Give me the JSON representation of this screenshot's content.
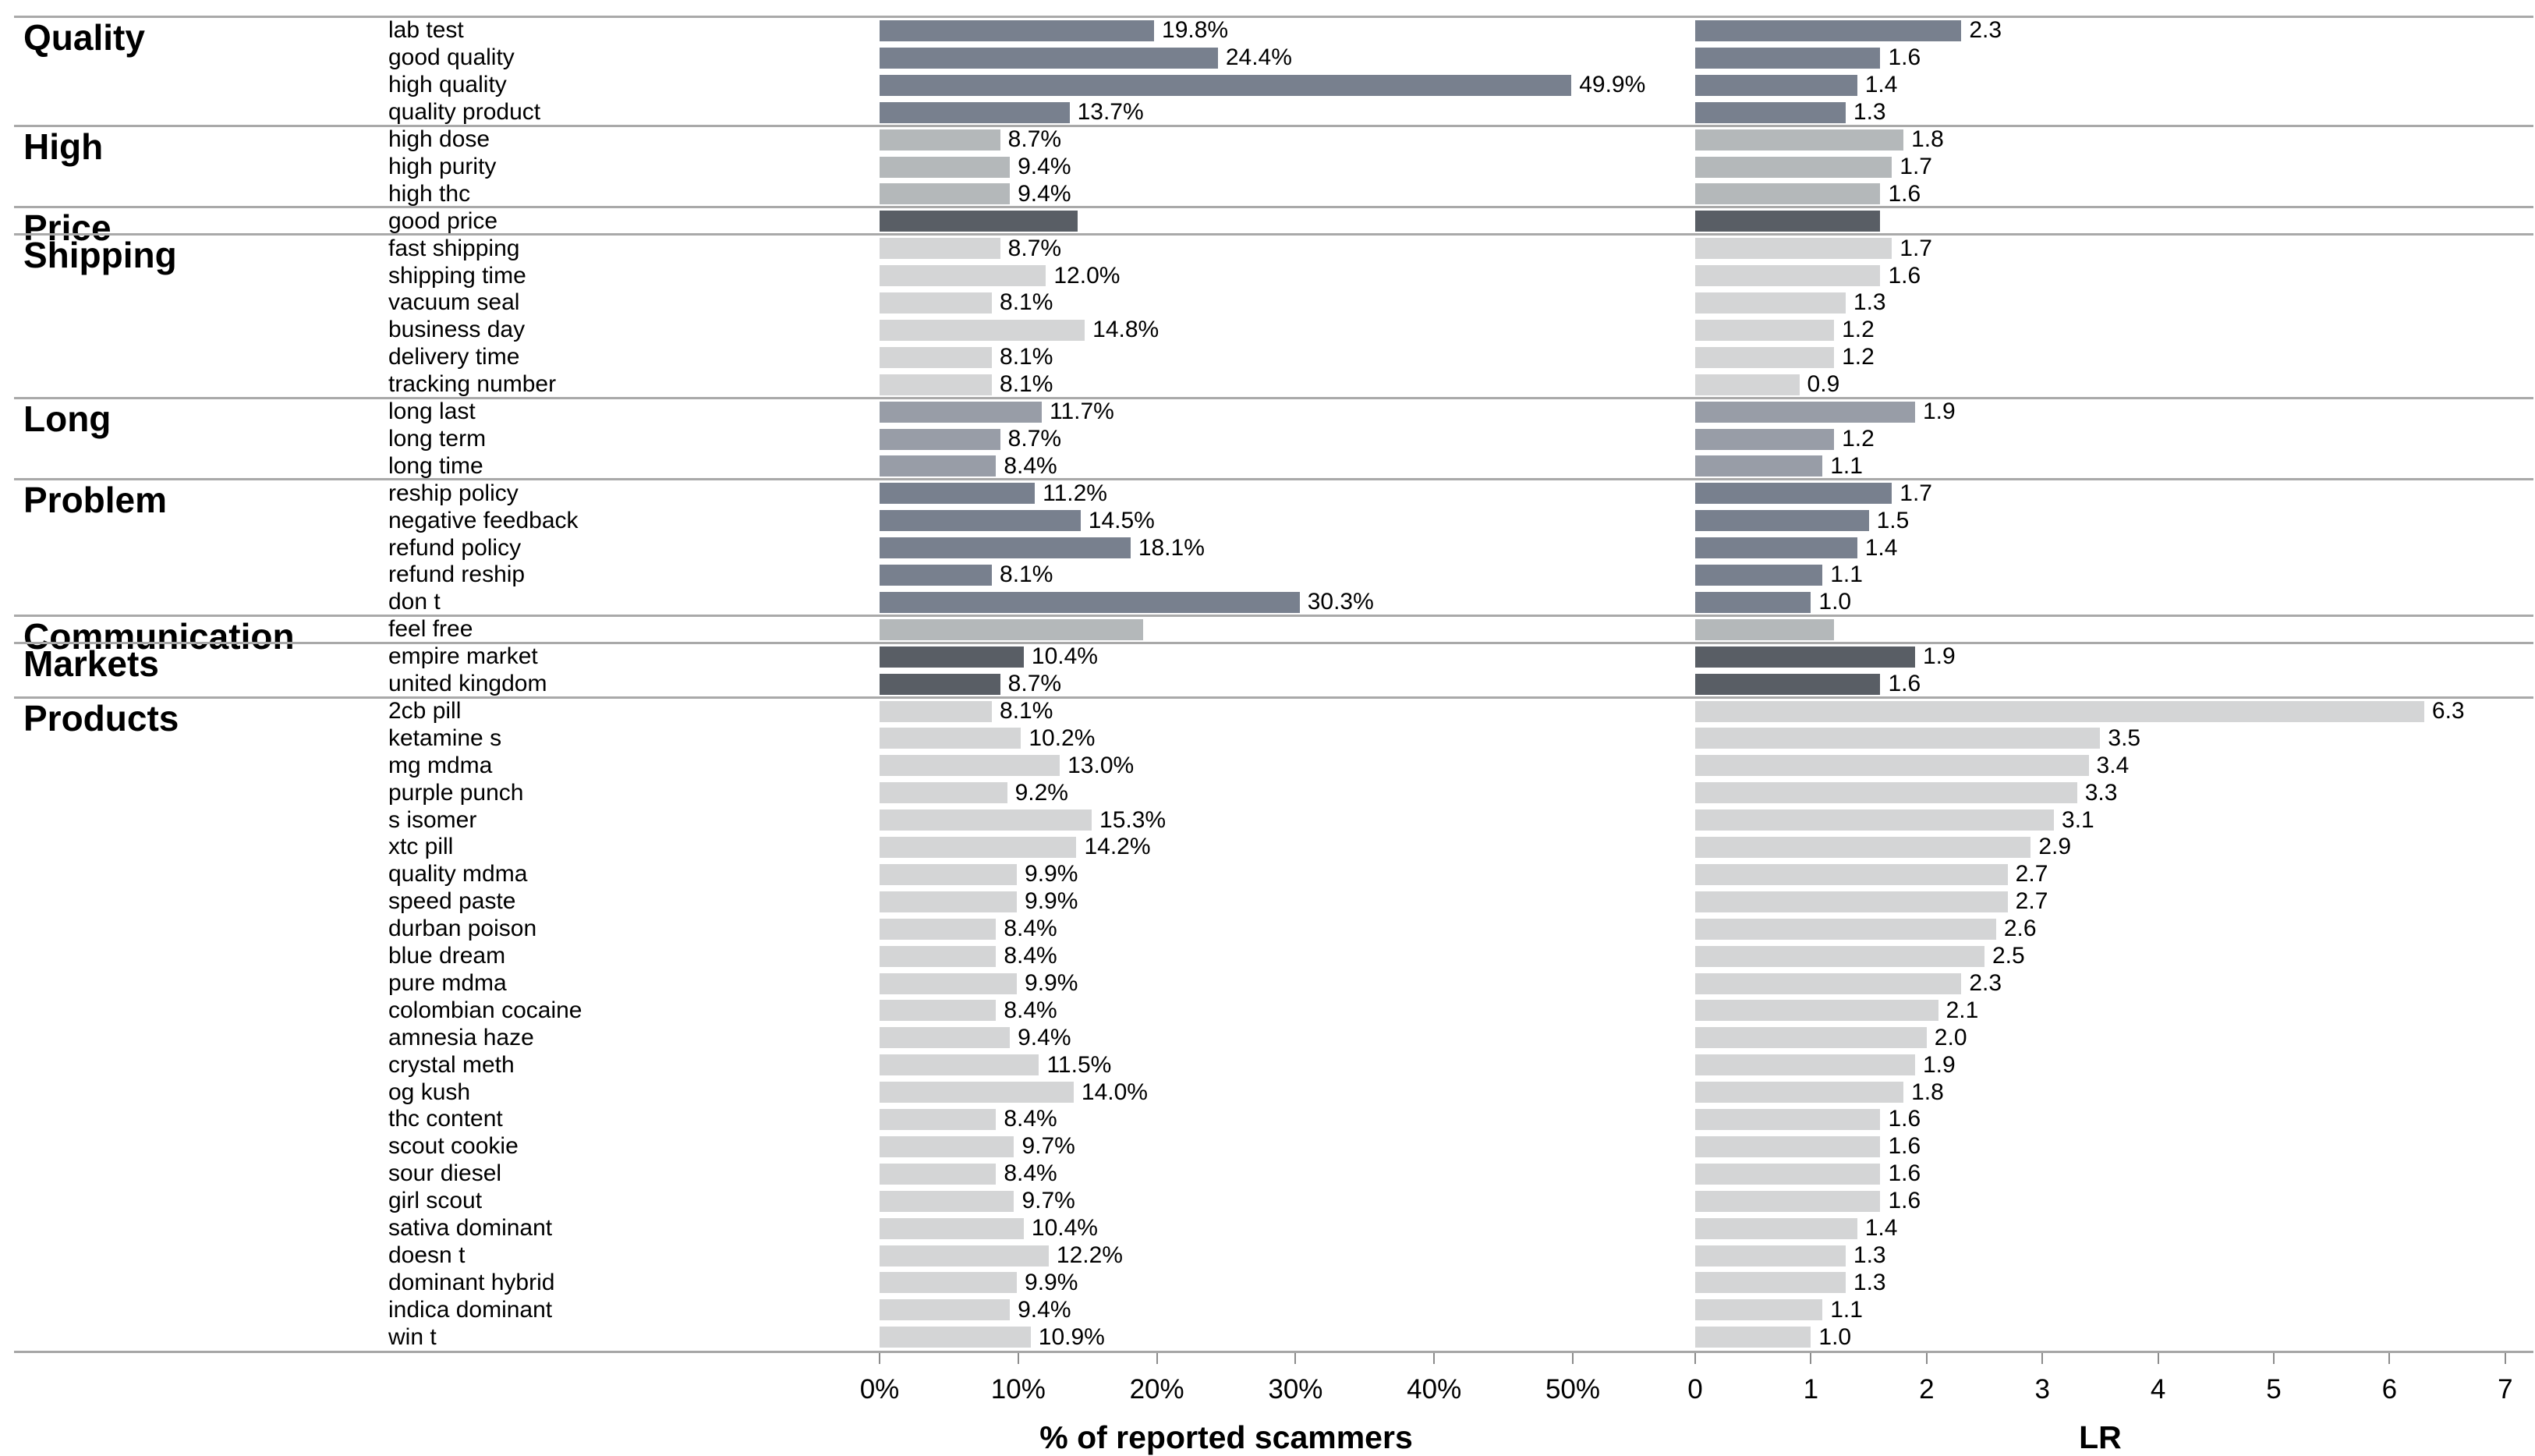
{
  "figure": {
    "background": "#ffffff",
    "left_axis": {
      "title": "% of reported scammers",
      "ticks": [
        "0%",
        "10%",
        "20%",
        "30%",
        "40%",
        "50%"
      ],
      "tick_values": [
        0,
        10,
        20,
        30,
        40,
        50
      ],
      "range": [
        0,
        50
      ]
    },
    "right_axis": {
      "title": "LR",
      "ticks": [
        "0",
        "1",
        "2",
        "3",
        "4",
        "5",
        "6",
        "7"
      ],
      "tick_values": [
        0,
        1,
        2,
        3,
        4,
        5,
        6,
        7
      ],
      "range": [
        0,
        7
      ]
    }
  },
  "chart_data": {
    "type": "bar",
    "orientation": "horizontal",
    "panels": [
      "% of reported scammers",
      "LR"
    ],
    "grid": false,
    "colors": {
      "slate": "#78808e",
      "silver": "#b4b8ba",
      "charcoal": "#595e65",
      "light_gray": "#d4d5d6",
      "medium_gray": "#989da7"
    },
    "groups": [
      {
        "label": "Quality",
        "color": "#78808e",
        "items": [
          {
            "label": "lab test",
            "pct": 19.8,
            "pct_label": "19.8%",
            "lr": 2.3,
            "lr_label": "2.3"
          },
          {
            "label": "good quality",
            "pct": 24.4,
            "pct_label": "24.4%",
            "lr": 1.6,
            "lr_label": "1.6"
          },
          {
            "label": "high quality",
            "pct": 49.9,
            "pct_label": "49.9%",
            "lr": 1.4,
            "lr_label": "1.4"
          },
          {
            "label": "quality product",
            "pct": 13.7,
            "pct_label": "13.7%",
            "lr": 1.3,
            "lr_label": "1.3"
          }
        ]
      },
      {
        "label": "High",
        "color": "#b4b8ba",
        "items": [
          {
            "label": "high dose",
            "pct": 8.7,
            "pct_label": "8.7%",
            "lr": 1.8,
            "lr_label": "1.8"
          },
          {
            "label": "high purity",
            "pct": 9.4,
            "pct_label": "9.4%",
            "lr": 1.7,
            "lr_label": "1.7"
          },
          {
            "label": "high thc",
            "pct": 9.4,
            "pct_label": "9.4%",
            "lr": 1.6,
            "lr_label": "1.6"
          }
        ]
      },
      {
        "label": "Price",
        "color": "#595e65",
        "items": [
          {
            "label": "good price",
            "pct": 14.3,
            "pct_label": "",
            "lr": 1.6,
            "lr_label": ""
          }
        ]
      },
      {
        "label": "Shipping",
        "color": "#d4d5d6",
        "items": [
          {
            "label": "fast shipping",
            "pct": 8.7,
            "pct_label": "8.7%",
            "lr": 1.7,
            "lr_label": "1.7"
          },
          {
            "label": "shipping time",
            "pct": 12.0,
            "pct_label": "12.0%",
            "lr": 1.6,
            "lr_label": "1.6"
          },
          {
            "label": "vacuum seal",
            "pct": 8.1,
            "pct_label": "8.1%",
            "lr": 1.3,
            "lr_label": "1.3"
          },
          {
            "label": "business day",
            "pct": 14.8,
            "pct_label": "14.8%",
            "lr": 1.2,
            "lr_label": "1.2"
          },
          {
            "label": "delivery time",
            "pct": 8.1,
            "pct_label": "8.1%",
            "lr": 1.2,
            "lr_label": "1.2"
          },
          {
            "label": "tracking number",
            "pct": 8.1,
            "pct_label": "8.1%",
            "lr": 0.9,
            "lr_label": "0.9"
          }
        ]
      },
      {
        "label": "Long",
        "color": "#989da7",
        "items": [
          {
            "label": "long last",
            "pct": 11.7,
            "pct_label": "11.7%",
            "lr": 1.9,
            "lr_label": "1.9"
          },
          {
            "label": "long term",
            "pct": 8.7,
            "pct_label": "8.7%",
            "lr": 1.2,
            "lr_label": "1.2"
          },
          {
            "label": "long time",
            "pct": 8.4,
            "pct_label": "8.4%",
            "lr": 1.1,
            "lr_label": "1.1"
          }
        ]
      },
      {
        "label": "Problem",
        "color": "#78808e",
        "items": [
          {
            "label": "reship policy",
            "pct": 11.2,
            "pct_label": "11.2%",
            "lr": 1.7,
            "lr_label": "1.7"
          },
          {
            "label": "negative feedback",
            "pct": 14.5,
            "pct_label": "14.5%",
            "lr": 1.5,
            "lr_label": "1.5"
          },
          {
            "label": "refund policy",
            "pct": 18.1,
            "pct_label": "18.1%",
            "lr": 1.4,
            "lr_label": "1.4"
          },
          {
            "label": "refund reship",
            "pct": 8.1,
            "pct_label": "8.1%",
            "lr": 1.1,
            "lr_label": "1.1"
          },
          {
            "label": "don t",
            "pct": 30.3,
            "pct_label": "30.3%",
            "lr": 1.0,
            "lr_label": "1.0"
          }
        ]
      },
      {
        "label": "Communication",
        "color": "#b4b8ba",
        "items": [
          {
            "label": "feel free",
            "pct": 19.0,
            "pct_label": "",
            "lr": 1.2,
            "lr_label": ""
          }
        ]
      },
      {
        "label": "Markets",
        "color": "#595e65",
        "items": [
          {
            "label": "empire market",
            "pct": 10.4,
            "pct_label": "10.4%",
            "lr": 1.9,
            "lr_label": "1.9"
          },
          {
            "label": "united kingdom",
            "pct": 8.7,
            "pct_label": "8.7%",
            "lr": 1.6,
            "lr_label": "1.6"
          }
        ]
      },
      {
        "label": "Products",
        "color": "#d4d5d6",
        "items": [
          {
            "label": "2cb pill",
            "pct": 8.1,
            "pct_label": "8.1%",
            "lr": 6.3,
            "lr_label": "6.3"
          },
          {
            "label": "ketamine s",
            "pct": 10.2,
            "pct_label": "10.2%",
            "lr": 3.5,
            "lr_label": "3.5"
          },
          {
            "label": "mg mdma",
            "pct": 13.0,
            "pct_label": "13.0%",
            "lr": 3.4,
            "lr_label": "3.4"
          },
          {
            "label": "purple punch",
            "pct": 9.2,
            "pct_label": "9.2%",
            "lr": 3.3,
            "lr_label": "3.3"
          },
          {
            "label": "s isomer",
            "pct": 15.3,
            "pct_label": "15.3%",
            "lr": 3.1,
            "lr_label": "3.1"
          },
          {
            "label": "xtc pill",
            "pct": 14.2,
            "pct_label": "14.2%",
            "lr": 2.9,
            "lr_label": "2.9"
          },
          {
            "label": "quality mdma",
            "pct": 9.9,
            "pct_label": "9.9%",
            "lr": 2.7,
            "lr_label": "2.7"
          },
          {
            "label": "speed paste",
            "pct": 9.9,
            "pct_label": "9.9%",
            "lr": 2.7,
            "lr_label": "2.7"
          },
          {
            "label": "durban poison",
            "pct": 8.4,
            "pct_label": "8.4%",
            "lr": 2.6,
            "lr_label": "2.6"
          },
          {
            "label": "blue dream",
            "pct": 8.4,
            "pct_label": "8.4%",
            "lr": 2.5,
            "lr_label": "2.5"
          },
          {
            "label": "pure mdma",
            "pct": 9.9,
            "pct_label": "9.9%",
            "lr": 2.3,
            "lr_label": "2.3"
          },
          {
            "label": "colombian cocaine",
            "pct": 8.4,
            "pct_label": "8.4%",
            "lr": 2.1,
            "lr_label": "2.1"
          },
          {
            "label": "amnesia haze",
            "pct": 9.4,
            "pct_label": "9.4%",
            "lr": 2.0,
            "lr_label": "2.0"
          },
          {
            "label": "crystal meth",
            "pct": 11.5,
            "pct_label": "11.5%",
            "lr": 1.9,
            "lr_label": "1.9"
          },
          {
            "label": "og kush",
            "pct": 14.0,
            "pct_label": "14.0%",
            "lr": 1.8,
            "lr_label": "1.8"
          },
          {
            "label": "thc content",
            "pct": 8.4,
            "pct_label": "8.4%",
            "lr": 1.6,
            "lr_label": "1.6"
          },
          {
            "label": "scout cookie",
            "pct": 9.7,
            "pct_label": "9.7%",
            "lr": 1.6,
            "lr_label": "1.6"
          },
          {
            "label": "sour diesel",
            "pct": 8.4,
            "pct_label": "8.4%",
            "lr": 1.6,
            "lr_label": "1.6"
          },
          {
            "label": "girl scout",
            "pct": 9.7,
            "pct_label": "9.7%",
            "lr": 1.6,
            "lr_label": "1.6"
          },
          {
            "label": "sativa dominant",
            "pct": 10.4,
            "pct_label": "10.4%",
            "lr": 1.4,
            "lr_label": "1.4"
          },
          {
            "label": "doesn t",
            "pct": 12.2,
            "pct_label": "12.2%",
            "lr": 1.3,
            "lr_label": "1.3"
          },
          {
            "label": "dominant hybrid",
            "pct": 9.9,
            "pct_label": "9.9%",
            "lr": 1.3,
            "lr_label": "1.3"
          },
          {
            "label": "indica dominant",
            "pct": 9.4,
            "pct_label": "9.4%",
            "lr": 1.1,
            "lr_label": "1.1"
          },
          {
            "label": "win t",
            "pct": 10.9,
            "pct_label": "10.9%",
            "lr": 1.0,
            "lr_label": "1.0"
          }
        ]
      }
    ]
  }
}
